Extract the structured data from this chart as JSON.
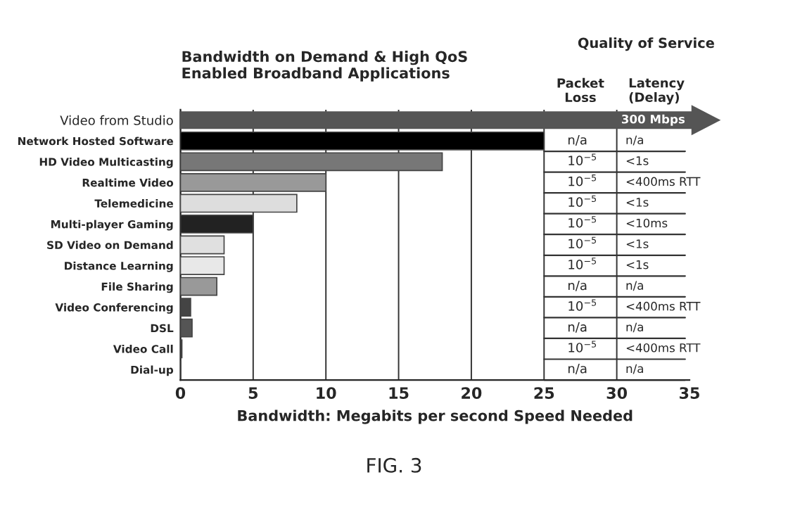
{
  "chart_data": {
    "type": "bar",
    "orientation": "horizontal",
    "title": "Bandwidth on Demand & High QoS\nEnabled Broadband Applications",
    "xlabel": "Bandwidth: Megabits per second Speed Needed",
    "categories": [
      "Video from Studio",
      "Network Hosted Software",
      "HD Video Multicasting",
      "Realtime Video",
      "Telemedicine",
      "Multi-player Gaming",
      "SD Video on Demand",
      "Distance Learning",
      "File Sharing",
      "Video Conferencing",
      "DSL",
      "Video Call",
      "Dial-up"
    ],
    "values": [
      null,
      25,
      18,
      10,
      8,
      5,
      3,
      3,
      2.5,
      0.7,
      0.8,
      0.1,
      0
    ],
    "colors": [
      "#555555",
      "#000000",
      "#777777",
      "#999999",
      "#dddddd",
      "#222222",
      "#e0e0e0",
      "#e8e8e8",
      "#999999",
      "#444444",
      "#555555",
      "#333333",
      "#000000"
    ],
    "xlim": [
      0,
      35
    ],
    "xticks": [
      0,
      5,
      10,
      15,
      20,
      25,
      30,
      35
    ],
    "grid": "x",
    "annotations": [
      "Quality of Service",
      "Packet\nLoss",
      "Latency\n(Delay)",
      "300 Mbps",
      "n/a",
      "10$^{−5}$",
      "10$^{−5}$",
      "10$^{−5}$",
      "10$^{−5}$",
      "10$^{−5}$",
      "10$^{−5}$",
      "n/a",
      "10$^{−5}$",
      "n/a",
      "10$^{−5}$",
      "n/a",
      "n/a",
      "<1s",
      "<400ms RTT",
      "<1s",
      "<10ms",
      "<1s",
      "<1s",
      "n/a",
      "<400ms RTT",
      "n/a",
      "<400ms RTT",
      "n/a",
      "FIG. 3"
    ]
  }
}
